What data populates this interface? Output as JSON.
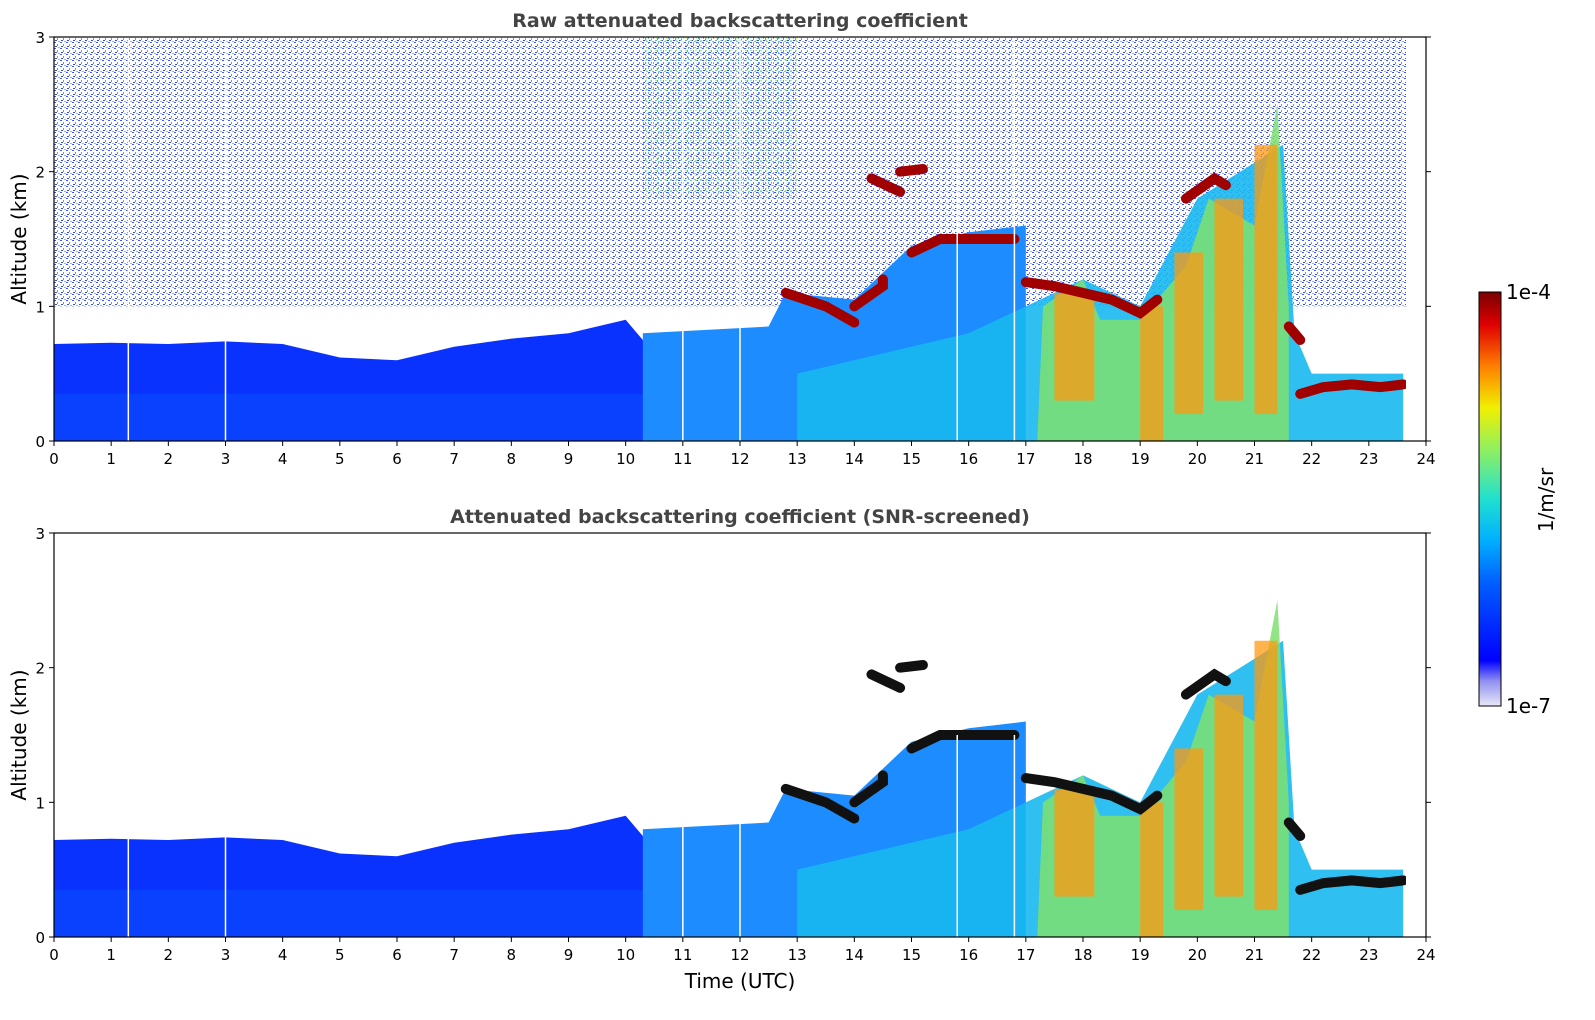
{
  "chart_data": [
    {
      "type": "heatmap",
      "title": "Raw attenuated backscattering coefficient",
      "xlabel": "",
      "ylabel": "Altitude (km)",
      "xlim": [
        0,
        24
      ],
      "ylim": [
        0,
        3
      ],
      "xticks": [
        "0",
        "1",
        "2",
        "3",
        "4",
        "5",
        "6",
        "7",
        "8",
        "9",
        "10",
        "11",
        "12",
        "13",
        "14",
        "15",
        "16",
        "17",
        "18",
        "19",
        "20",
        "21",
        "22",
        "23",
        "24"
      ],
      "yticks": [
        "0",
        "1",
        "2",
        "3"
      ],
      "data_end_time": 23.65,
      "features": [
        {
          "time": [
            0,
            10
          ],
          "boundary_layer_top_km": 0.7
        },
        {
          "time": [
            12.8,
            14.0
          ],
          "layer_km": [
            1.1,
            0.85
          ]
        },
        {
          "time": [
            14.2,
            15.3
          ],
          "layer_km": [
            1.9,
            2.0
          ]
        },
        {
          "time": [
            15.0,
            16.8
          ],
          "layer_km": 1.5
        },
        {
          "time": [
            17.0,
            19.0
          ],
          "layer_km": 1.1
        },
        {
          "time": [
            19.8,
            21.6
          ],
          "layer_km": 1.9
        },
        {
          "time": [
            21.8,
            23.6
          ],
          "layer_km": 0.45
        }
      ]
    },
    {
      "type": "heatmap",
      "title": "Attenuated backscattering coefficient (SNR-screened)",
      "xlabel": "Time (UTC)",
      "ylabel": "Altitude (km)",
      "xlim": [
        0,
        24
      ],
      "ylim": [
        0,
        3
      ],
      "xticks": [
        "0",
        "1",
        "2",
        "3",
        "4",
        "5",
        "6",
        "7",
        "8",
        "9",
        "10",
        "11",
        "12",
        "13",
        "14",
        "15",
        "16",
        "17",
        "18",
        "19",
        "20",
        "21",
        "22",
        "23",
        "24"
      ],
      "yticks": [
        "0",
        "1",
        "2",
        "3"
      ],
      "data_end_time": 23.65
    }
  ],
  "colorbar": {
    "label": "1/m/sr",
    "max_label": "1e-4",
    "min_label": "1e-7",
    "scale": "log",
    "colormap": "jet"
  }
}
